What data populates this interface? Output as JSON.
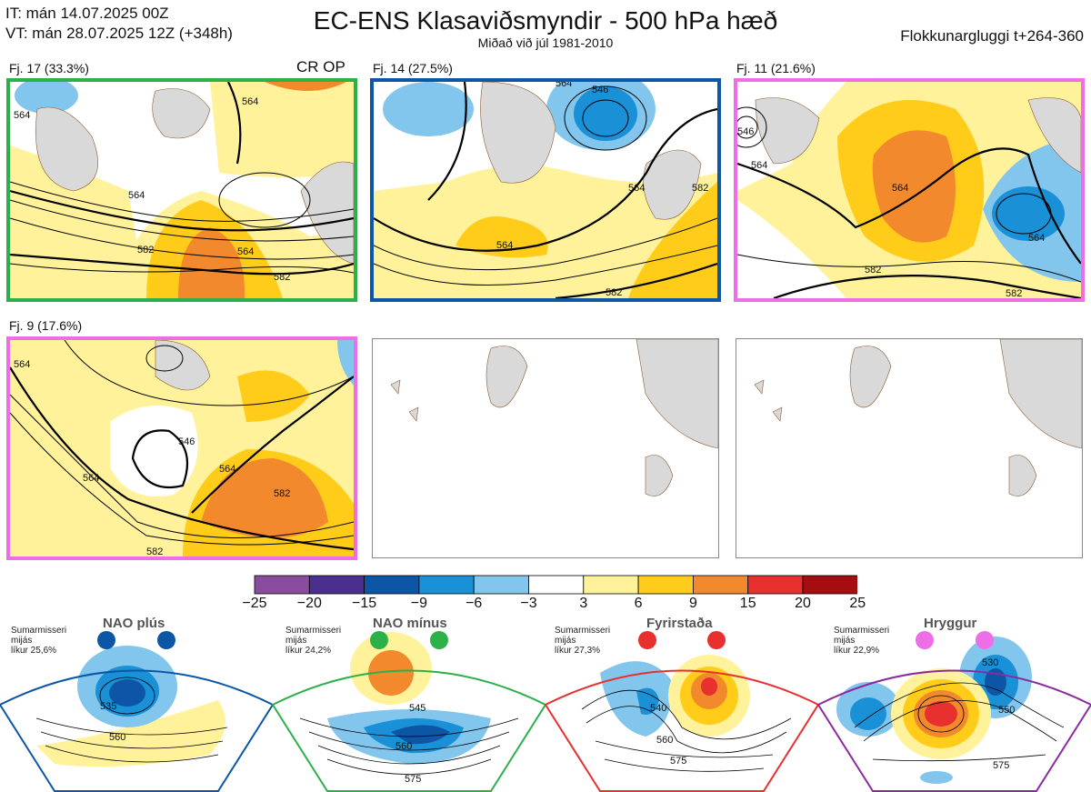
{
  "header": {
    "it_line": "IT: mán 14.07.2025 00Z",
    "vt_line": "VT: mán 28.07.2025 12Z  (+348h)",
    "title": "EC-ENS Klasaviðsmyndir - 500 hPa hæð",
    "subtitle": "Miðað við júl 1981-2010",
    "window": "Flokkunargluggi t+264-360"
  },
  "panels": [
    {
      "label": "Fj. 17 (33.3%)",
      "extra": "CR OP",
      "border": "#2bb04a",
      "contours": [
        "564",
        "564",
        "564",
        "582",
        "582",
        "564"
      ]
    },
    {
      "label": "Fj. 14 (27.5%)",
      "extra": "",
      "border": "#0d56a6",
      "contours": [
        "564",
        "546",
        "564",
        "582",
        "564",
        "582"
      ]
    },
    {
      "label": "Fj. 11 (21.6%)",
      "extra": "",
      "border": "#ee6ee8",
      "contours": [
        "546",
        "564",
        "564",
        "582",
        "564",
        "582"
      ]
    },
    {
      "label": "Fj. 9 (17.6%)",
      "extra": "",
      "border": "#ee6ee8",
      "contours": [
        "564",
        "546",
        "564",
        "564",
        "582",
        "582"
      ]
    }
  ],
  "colorbar": {
    "ticks": [
      "−25",
      "−20",
      "−15",
      "−9",
      "−6",
      "−3",
      "3",
      "6",
      "9",
      "15",
      "20",
      "25"
    ],
    "colors": [
      "#8a4c9e",
      "#4a2f8f",
      "#0d56a6",
      "#1a90d6",
      "#82c6ee",
      "#ffffff",
      "#fff29a",
      "#ffcc1a",
      "#f2892d",
      "#e8302e",
      "#a50d10"
    ]
  },
  "regimes": [
    {
      "name": "NAO plús",
      "season": "Sumarmisseri",
      "sub": "mijás",
      "prob": "líkur 25,6%",
      "color": "#0d56a6",
      "contours": [
        "535",
        "560"
      ]
    },
    {
      "name": "NAO mínus",
      "season": "Sumarmisseri",
      "sub": "mijás",
      "prob": "líkur 24,2%",
      "color": "#2bb04a",
      "contours": [
        "545",
        "560",
        "575"
      ]
    },
    {
      "name": "Fyrirstaða",
      "season": "Sumarmisseri",
      "sub": "mijás",
      "prob": "líkur 27,3%",
      "color": "#e8302e",
      "contours": [
        "540",
        "560",
        "575"
      ]
    },
    {
      "name": "Hryggur",
      "season": "Sumarmisseri",
      "sub": "mijás",
      "prob": "líkur 22,9%",
      "color": "#ee6ee8",
      "contours": [
        "530",
        "550",
        "575"
      ]
    }
  ]
}
